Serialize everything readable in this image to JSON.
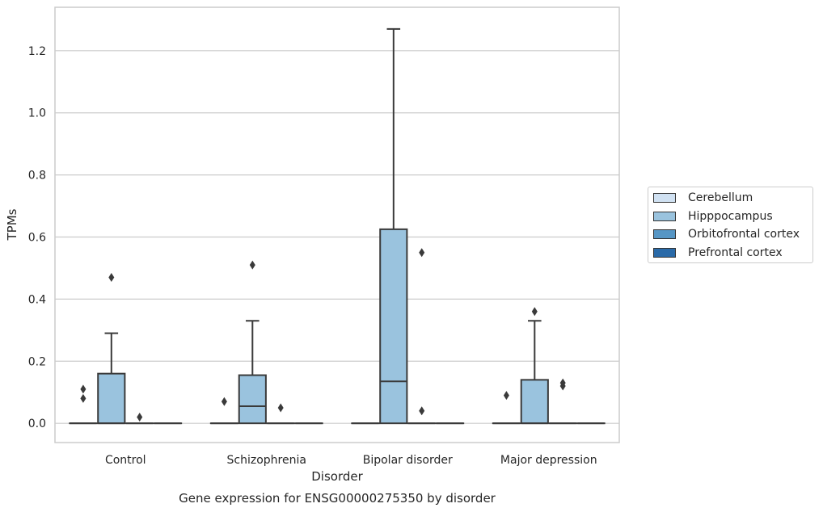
{
  "chart_data": {
    "type": "box",
    "title": "Gene expression for ENSG00000275350 by disorder",
    "xlabel": "Disorder",
    "ylabel": "TPMs",
    "ylim": [
      -0.062,
      1.34
    ],
    "yticks": [
      "0.0",
      "0.2",
      "0.4",
      "0.6",
      "0.8",
      "1.0",
      "1.2"
    ],
    "grid": true,
    "legend_position": "right",
    "categories": [
      "Control",
      "Schizophrenia",
      "Bipolar disorder",
      "Major depression"
    ],
    "series": [
      {
        "name": "Cerebellum",
        "color": "#d0e1f2",
        "boxes": [
          {
            "q1": 0,
            "median": 0,
            "q3": 0,
            "whisker_low": 0,
            "whisker_high": 0,
            "outliers": [
              0.08,
              0.11
            ]
          },
          {
            "q1": 0,
            "median": 0,
            "q3": 0,
            "whisker_low": 0,
            "whisker_high": 0,
            "outliers": [
              0.07
            ]
          },
          {
            "q1": 0,
            "median": 0,
            "q3": 0,
            "whisker_low": 0,
            "whisker_high": 0,
            "outliers": []
          },
          {
            "q1": 0,
            "median": 0,
            "q3": 0,
            "whisker_low": 0,
            "whisker_high": 0,
            "outliers": [
              0.09
            ]
          }
        ]
      },
      {
        "name": "Hipppocampus",
        "color": "#9ac3de",
        "boxes": [
          {
            "q1": 0,
            "median": 0,
            "q3": 0.16,
            "whisker_low": 0,
            "whisker_high": 0.29,
            "outliers": [
              0.47
            ]
          },
          {
            "q1": 0,
            "median": 0.055,
            "q3": 0.155,
            "whisker_low": 0,
            "whisker_high": 0.33,
            "outliers": [
              0.51
            ]
          },
          {
            "q1": 0,
            "median": 0.135,
            "q3": 0.625,
            "whisker_low": 0,
            "whisker_high": 1.27,
            "outliers": []
          },
          {
            "q1": 0,
            "median": 0,
            "q3": 0.14,
            "whisker_low": 0,
            "whisker_high": 0.33,
            "outliers": [
              0.36
            ]
          }
        ]
      },
      {
        "name": "Orbitofrontal cortex",
        "color": "#5696c5",
        "boxes": [
          {
            "q1": 0,
            "median": 0,
            "q3": 0,
            "whisker_low": 0,
            "whisker_high": 0,
            "outliers": [
              0.02
            ]
          },
          {
            "q1": 0,
            "median": 0,
            "q3": 0,
            "whisker_low": 0,
            "whisker_high": 0,
            "outliers": [
              0.05
            ]
          },
          {
            "q1": 0,
            "median": 0,
            "q3": 0,
            "whisker_low": 0,
            "whisker_high": 0,
            "outliers": [
              0.04,
              0.55
            ]
          },
          {
            "q1": 0,
            "median": 0,
            "q3": 0,
            "whisker_low": 0,
            "whisker_high": 0,
            "outliers": [
              0.12,
              0.13
            ]
          }
        ]
      },
      {
        "name": "Prefrontal cortex",
        "color": "#2a6aa8",
        "boxes": [
          {
            "q1": 0,
            "median": 0,
            "q3": 0,
            "whisker_low": 0,
            "whisker_high": 0,
            "outliers": []
          },
          {
            "q1": 0,
            "median": 0,
            "q3": 0,
            "whisker_low": 0,
            "whisker_high": 0,
            "outliers": []
          },
          {
            "q1": 0,
            "median": 0,
            "q3": 0,
            "whisker_low": 0,
            "whisker_high": 0,
            "outliers": []
          },
          {
            "q1": 0,
            "median": 0,
            "q3": 0,
            "whisker_low": 0,
            "whisker_high": 0,
            "outliers": []
          }
        ]
      }
    ]
  }
}
